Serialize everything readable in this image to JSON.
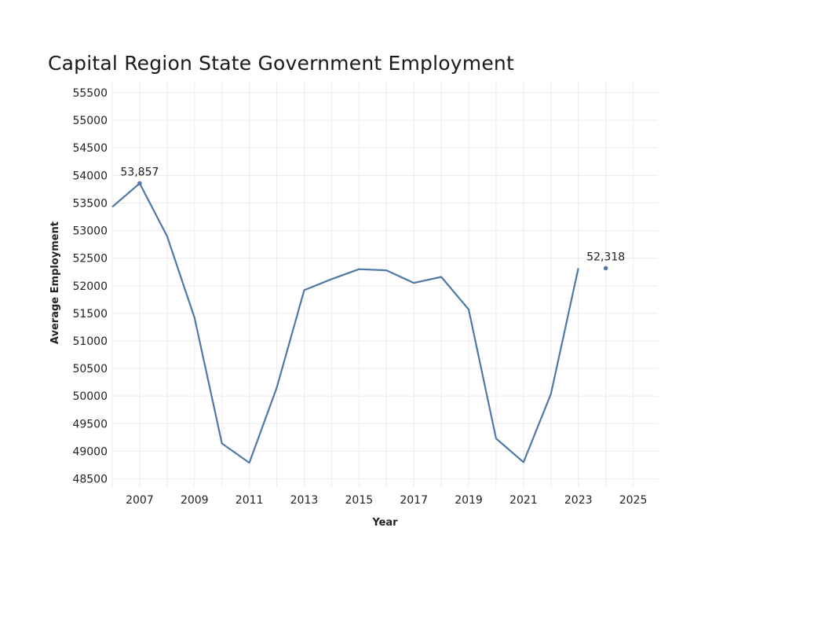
{
  "chart_data": {
    "type": "line",
    "title": "Capital Region State Government Employment",
    "xlabel": "Year",
    "ylabel": "Average Employment",
    "xlim": [
      2006,
      2025.9
    ],
    "ylim": [
      48350,
      55700
    ],
    "x_ticks": [
      2007,
      2009,
      2011,
      2013,
      2015,
      2017,
      2019,
      2021,
      2023,
      2025
    ],
    "y_ticks": [
      48500,
      49000,
      49500,
      50000,
      50500,
      51000,
      51500,
      52000,
      52500,
      53000,
      53500,
      54000,
      54500,
      55000,
      55500
    ],
    "grid": true,
    "line_color": "#4e79a7",
    "series": [
      {
        "x": [
          2006,
          2007,
          2008,
          2009,
          2010,
          2011,
          2012,
          2013,
          2014,
          2015,
          2016,
          2017,
          2018,
          2019,
          2020,
          2021,
          2022,
          2023,
          2024
        ],
        "values": [
          53430,
          53857,
          52900,
          51420,
          49140,
          48790,
          50150,
          51920,
          52120,
          52300,
          52280,
          52050,
          52160,
          51570,
          49230,
          48800,
          50040,
          52318,
          null
        ]
      }
    ],
    "annotations": [
      {
        "x": 2007,
        "y": 53857,
        "text": "53,857"
      },
      {
        "x": 2024,
        "y": 52318,
        "text": "52,318"
      }
    ]
  }
}
